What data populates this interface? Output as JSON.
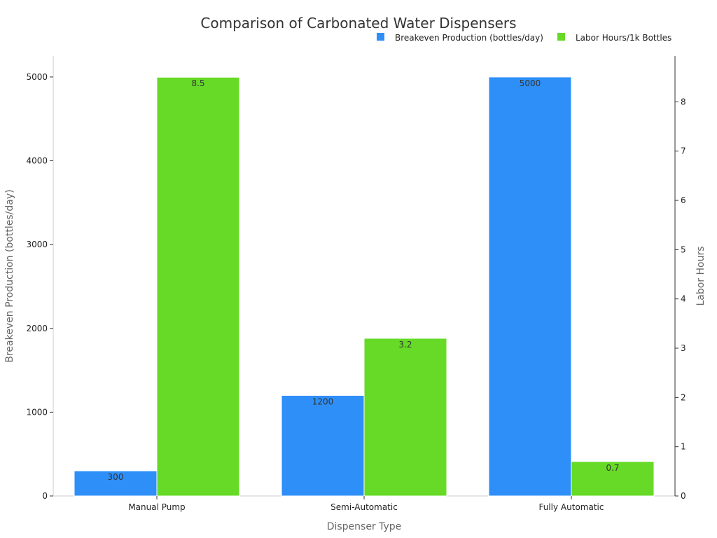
{
  "chart_data": {
    "type": "bar",
    "title": "Comparison of Carbonated Water Dispensers",
    "xlabel": "Dispenser Type",
    "ylabel": "Breakeven Production (bottles/day)",
    "y2label": "Labor Hours",
    "categories": [
      "Manual Pump",
      "Semi-Automatic",
      "Fully Automatic"
    ],
    "series": [
      {
        "name": "Breakeven Production (bottles/day)",
        "axis": "left",
        "color": "#2e8ff8",
        "values": [
          300,
          1200,
          5000
        ],
        "labels": [
          "300",
          "1200",
          "5000"
        ]
      },
      {
        "name": "Labor Hours/1k Bottles",
        "axis": "right",
        "color": "#66da26",
        "values": [
          8.5,
          3.2,
          0.7
        ],
        "labels": [
          "8.5",
          "3.2",
          "0.7"
        ]
      }
    ],
    "ylim": [
      0,
      5250
    ],
    "y2lim": [
      0,
      8.93
    ],
    "yticks": [
      0,
      1000,
      2000,
      3000,
      4000,
      5000
    ],
    "y2ticks": [
      0,
      1,
      2,
      3,
      4,
      5,
      6,
      7,
      8
    ],
    "legend_position": "top-right",
    "grid": false
  }
}
